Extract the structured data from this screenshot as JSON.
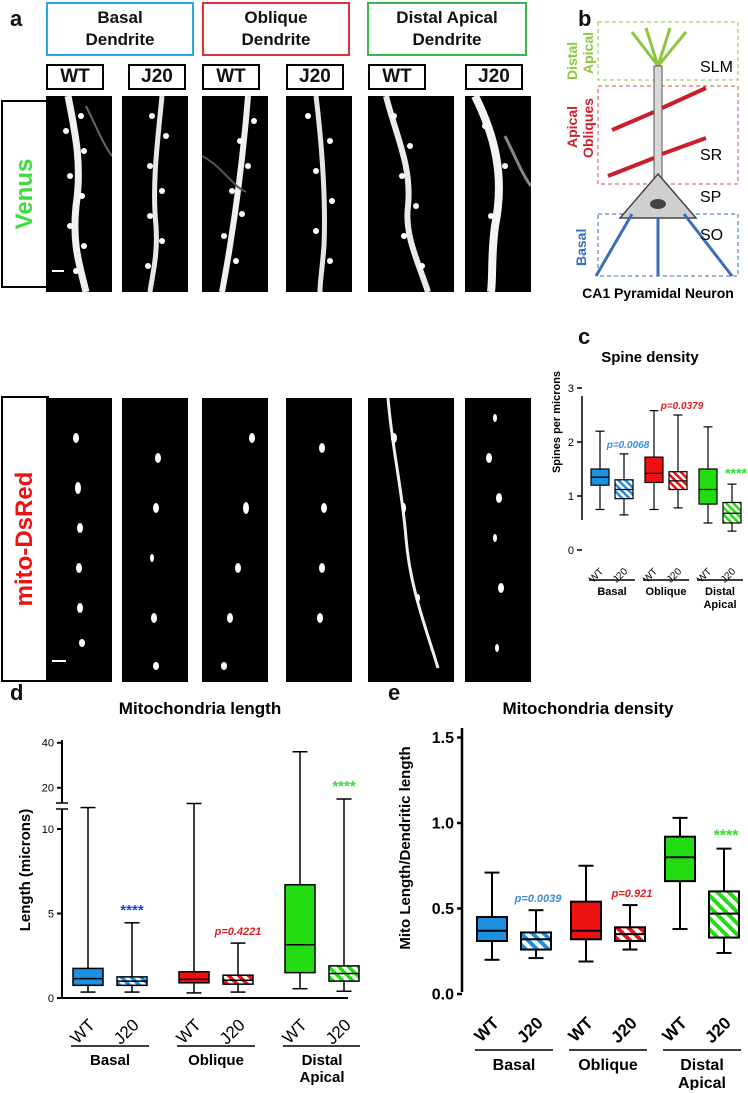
{
  "panel_labels": {
    "a": "a",
    "b": "b",
    "c": "c",
    "d": "d",
    "e": "e"
  },
  "panel_a": {
    "headers": [
      {
        "line1": "Basal",
        "line2": "Dendrite",
        "color": "#29a8e0"
      },
      {
        "line1": "Oblique",
        "line2": "Dendrite",
        "color": "#e0303a"
      },
      {
        "line1": "Distal Apical",
        "line2": "Dendrite",
        "color": "#3cb54a"
      }
    ],
    "genotypes": [
      "WT",
      "J20",
      "WT",
      "J20",
      "WT",
      "J20"
    ],
    "rows": [
      {
        "label": "Venus",
        "color": "#3ddc3d"
      },
      {
        "label": "mito-DsRed",
        "color": "#ee1111"
      }
    ]
  },
  "panel_b": {
    "regions": [
      {
        "name": "SLM",
        "label_line1": "Distal",
        "label_line2": "Apical",
        "label_color": "#8dc63f"
      },
      {
        "name": "SR",
        "label_line1": "Apical",
        "label_line2": "Obliques",
        "label_color": "#d0202a"
      },
      {
        "name": "SP",
        "label_line1": "",
        "label_line2": "",
        "label_color": "#111111"
      },
      {
        "name": "SO",
        "label_line1": "Basal",
        "label_line2": "",
        "label_color": "#3a6fb7"
      }
    ],
    "caption": "CA1 Pyramidal Neuron"
  },
  "chart_data": [
    {
      "type": "box",
      "panel": "c",
      "title": "Spine density",
      "ylabel": "Spines per microns",
      "ylim": [
        0,
        3
      ],
      "yticks": [
        0,
        1,
        2,
        3
      ],
      "groups": [
        "Basal",
        "Oblique",
        "Distal Apical"
      ],
      "categories": [
        "WT",
        "J20",
        "WT",
        "J20",
        "WT",
        "J20"
      ],
      "boxes": [
        {
          "group": "Basal",
          "genotype": "WT",
          "min": 0.75,
          "q1": 1.2,
          "median": 1.35,
          "q3": 1.5,
          "max": 2.2,
          "color": "#1f8fe0",
          "hatched": false
        },
        {
          "group": "Basal",
          "genotype": "J20",
          "min": 0.65,
          "q1": 0.95,
          "median": 1.12,
          "q3": 1.3,
          "max": 1.78,
          "color": "#1f8fe0",
          "hatched": true
        },
        {
          "group": "Oblique",
          "genotype": "WT",
          "min": 0.75,
          "q1": 1.25,
          "median": 1.42,
          "q3": 1.72,
          "max": 2.58,
          "color": "#ee1111",
          "hatched": false
        },
        {
          "group": "Oblique",
          "genotype": "J20",
          "min": 0.78,
          "q1": 1.12,
          "median": 1.28,
          "q3": 1.45,
          "max": 2.5,
          "color": "#ee1111",
          "hatched": true
        },
        {
          "group": "Distal Apical",
          "genotype": "WT",
          "min": 0.5,
          "q1": 0.85,
          "median": 1.12,
          "q3": 1.5,
          "max": 2.28,
          "color": "#22dd11",
          "hatched": false
        },
        {
          "group": "Distal Apical",
          "genotype": "J20",
          "min": 0.35,
          "q1": 0.5,
          "median": 0.68,
          "q3": 0.88,
          "max": 1.22,
          "color": "#22dd11",
          "hatched": true
        }
      ],
      "annotations": [
        {
          "text": "p=0.0068",
          "box_index": 1,
          "color": "#3b8fd9",
          "italic": true
        },
        {
          "text": "p=0.0379",
          "box_index": 3,
          "color": "#e02020",
          "italic": true
        },
        {
          "text": "****",
          "box_index": 5,
          "color": "#33dd33",
          "italic": false
        }
      ]
    },
    {
      "type": "box",
      "panel": "d",
      "title": "Mitochondria length",
      "ylabel": "Length (microns)",
      "yaxis_break": {
        "lower_range": [
          0,
          11
        ],
        "upper_range": [
          11,
          40
        ]
      },
      "yticks": [
        0,
        5,
        10,
        20,
        40
      ],
      "groups": [
        "Basal",
        "Oblique",
        "Distal Apical"
      ],
      "categories": [
        "WT",
        "J20",
        "WT",
        "J20",
        "WT",
        "J20"
      ],
      "boxes": [
        {
          "group": "Basal",
          "genotype": "WT",
          "min": 0.35,
          "q1": 0.75,
          "median": 1.15,
          "q3": 1.75,
          "max": 11.2,
          "color": "#1f8fe0",
          "hatched": false
        },
        {
          "group": "Basal",
          "genotype": "J20",
          "min": 0.35,
          "q1": 0.75,
          "median": 1.0,
          "q3": 1.25,
          "max": 4.45,
          "color": "#1f8fe0",
          "hatched": true
        },
        {
          "group": "Oblique",
          "genotype": "WT",
          "min": 0.3,
          "q1": 0.9,
          "median": 1.1,
          "q3": 1.55,
          "max": 13,
          "color": "#ee1111",
          "hatched": false
        },
        {
          "group": "Oblique",
          "genotype": "J20",
          "min": 0.35,
          "q1": 0.82,
          "median": 1.05,
          "q3": 1.35,
          "max": 3.25,
          "color": "#ee1111",
          "hatched": true
        },
        {
          "group": "Distal Apical",
          "genotype": "WT",
          "min": 0.55,
          "q1": 1.5,
          "median": 3.15,
          "q3": 6.7,
          "max": 36,
          "color": "#22dd11",
          "hatched": false
        },
        {
          "group": "Distal Apical",
          "genotype": "J20",
          "min": 0.4,
          "q1": 1.0,
          "median": 1.45,
          "q3": 1.9,
          "max": 15,
          "color": "#22dd11",
          "hatched": true
        }
      ],
      "annotations": [
        {
          "text": "****",
          "box_index": 1,
          "color": "#1f3fd9",
          "italic": false
        },
        {
          "text": "p=0.4221",
          "box_index": 3,
          "color": "#e02020",
          "italic": true
        },
        {
          "text": "****",
          "box_index": 5,
          "color": "#33dd33",
          "italic": false
        }
      ]
    },
    {
      "type": "box",
      "panel": "e",
      "title": "Mitochondria density",
      "ylabel": "Mito Length/Dendritic length",
      "ylim": [
        0,
        1.5
      ],
      "yticks": [
        "0.0",
        "0.5",
        "1.0",
        "1.5"
      ],
      "groups": [
        "Basal",
        "Oblique",
        "Distal Apical"
      ],
      "categories": [
        "WT",
        "J20",
        "WT",
        "J20",
        "WT",
        "J20"
      ],
      "boxes": [
        {
          "group": "Basal",
          "genotype": "WT",
          "min": 0.2,
          "q1": 0.31,
          "median": 0.37,
          "q3": 0.45,
          "max": 0.71,
          "color": "#1f8fe0",
          "hatched": false
        },
        {
          "group": "Basal",
          "genotype": "J20",
          "min": 0.21,
          "q1": 0.26,
          "median": 0.32,
          "q3": 0.36,
          "max": 0.49,
          "color": "#1f8fe0",
          "hatched": true
        },
        {
          "group": "Oblique",
          "genotype": "WT",
          "min": 0.19,
          "q1": 0.32,
          "median": 0.37,
          "q3": 0.54,
          "max": 0.75,
          "color": "#ee1111",
          "hatched": false
        },
        {
          "group": "Oblique",
          "genotype": "J20",
          "min": 0.26,
          "q1": 0.31,
          "median": 0.35,
          "q3": 0.39,
          "max": 0.52,
          "color": "#ee1111",
          "hatched": true
        },
        {
          "group": "Distal Apical",
          "genotype": "WT",
          "min": 0.38,
          "q1": 0.66,
          "median": 0.8,
          "q3": 0.92,
          "max": 1.03,
          "color": "#22dd11",
          "hatched": false
        },
        {
          "group": "Distal Apical",
          "genotype": "J20",
          "min": 0.24,
          "q1": 0.33,
          "median": 0.47,
          "q3": 0.6,
          "max": 0.85,
          "color": "#22dd11",
          "hatched": true
        }
      ],
      "annotations": [
        {
          "text": "p=0.0039",
          "box_index": 1,
          "color": "#3b8fd9",
          "italic": true
        },
        {
          "text": "p=0.921",
          "box_index": 3,
          "color": "#e02020",
          "italic": true
        },
        {
          "text": "****",
          "box_index": 5,
          "color": "#33dd33",
          "italic": false
        }
      ]
    }
  ]
}
